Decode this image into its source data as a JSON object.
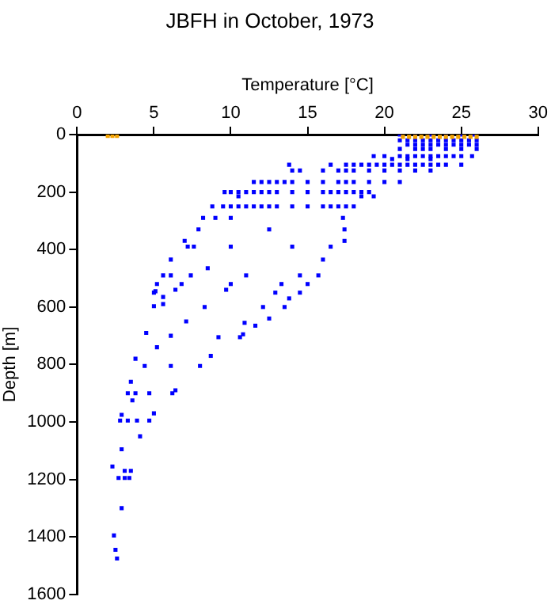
{
  "chart_data": {
    "type": "scatter",
    "title": "JBFH in October, 1973",
    "xlabel": "Temperature [°C]",
    "ylabel": "Depth [m]",
    "xlim": [
      0,
      30
    ],
    "xticks": [
      0,
      5,
      10,
      15,
      20,
      25,
      30
    ],
    "ylim": [
      1600,
      0
    ],
    "yticks": [
      0,
      200,
      400,
      600,
      800,
      1000,
      1200,
      1400,
      1600
    ],
    "grid": false,
    "legend": false,
    "marker": "square",
    "series": [
      {
        "color": "#f5a300",
        "x": [
          2.0,
          2.3,
          2.6,
          21.2,
          21.6,
          22,
          22.4,
          22.8,
          23.2,
          23.6,
          24,
          24.4,
          24.8,
          25.2,
          25.6,
          26
        ],
        "values": [
          5,
          5,
          5,
          8,
          8,
          8,
          8,
          8,
          8,
          8,
          8,
          8,
          8,
          8,
          8,
          8
        ]
      },
      {
        "color": "#0000ff",
        "x": [
          21,
          22,
          23,
          24,
          25,
          25.8,
          21,
          21.5,
          22,
          22.5,
          23,
          23.5,
          24,
          24.5,
          25,
          25.5,
          26,
          21.5,
          22,
          22.5,
          23,
          23.5,
          24,
          24.5,
          25,
          25.5,
          26,
          21,
          22,
          22.5,
          23,
          24,
          25,
          26,
          19.3,
          20,
          21,
          21.5,
          22,
          22.5,
          23,
          23.5,
          24,
          24.5,
          25,
          25.7,
          20.5,
          21.5,
          23,
          13.8,
          16.5,
          17.5,
          18,
          18.5,
          19,
          19.5,
          20,
          20.5,
          21,
          21.5,
          22,
          22.5,
          23,
          23.5,
          24,
          25,
          14,
          14.5,
          16,
          17,
          17.5,
          18,
          19,
          20,
          21,
          22,
          23,
          11.5,
          12,
          12.5,
          13,
          13.5,
          14,
          15,
          16,
          17,
          17.5,
          18,
          19,
          20,
          21,
          9.6,
          10,
          10.5,
          11,
          11.5,
          12,
          12.5,
          13,
          14,
          15,
          16,
          16.5,
          17,
          17.5,
          18,
          18.5,
          19,
          10.5,
          18.5,
          19.3,
          8.8,
          9.5,
          10,
          10.5,
          11,
          11.5,
          12,
          12.5,
          13,
          14,
          15,
          16,
          16.5,
          17,
          17.5,
          18,
          8.2,
          9,
          10,
          17.3,
          7.9,
          12.5,
          17.4,
          7,
          17.4,
          7.2,
          7.6,
          10,
          14,
          16.5,
          6.1,
          16,
          8.5,
          5.6,
          6.1,
          7.4,
          11,
          14.5,
          15.7,
          5.2,
          6.8,
          10,
          13.3,
          15,
          5.0,
          5.1,
          6.4,
          9.7,
          12.9,
          14.5,
          13.8,
          5.0,
          5.6,
          8.3,
          12.1,
          13.5,
          5.6,
          7.1,
          4.5,
          6.1,
          9.2,
          10.6,
          10.9,
          11.6,
          12.5,
          10.8,
          5.2,
          3.8,
          4.4,
          6.1,
          8.0,
          8.7,
          3.5,
          3.3,
          3.8,
          4.7,
          3.6,
          6.2,
          6.4,
          2.9,
          2.8,
          3.3,
          3.9,
          4.7,
          5.0,
          4.1,
          2.9,
          2.3,
          2.7,
          3.1,
          3.5,
          3.1,
          3.4,
          2.9,
          2.4,
          2.5,
          2.6
        ],
        "values": [
          0,
          0,
          0,
          0,
          0,
          0,
          20,
          20,
          20,
          20,
          20,
          20,
          20,
          20,
          20,
          20,
          20,
          35,
          35,
          35,
          35,
          35,
          35,
          35,
          35,
          35,
          35,
          50,
          50,
          50,
          50,
          50,
          50,
          50,
          75,
          75,
          75,
          75,
          75,
          75,
          75,
          75,
          75,
          75,
          75,
          75,
          85,
          85,
          85,
          105,
          105,
          105,
          105,
          105,
          105,
          105,
          105,
          105,
          105,
          105,
          105,
          105,
          105,
          105,
          105,
          105,
          125,
          125,
          125,
          125,
          125,
          125,
          125,
          125,
          125,
          125,
          125,
          165,
          165,
          165,
          165,
          165,
          165,
          165,
          165,
          165,
          165,
          165,
          165,
          165,
          165,
          200,
          200,
          200,
          200,
          200,
          200,
          200,
          200,
          200,
          200,
          200,
          200,
          200,
          200,
          200,
          200,
          200,
          215,
          215,
          215,
          250,
          250,
          250,
          250,
          250,
          250,
          250,
          250,
          250,
          250,
          250,
          250,
          250,
          250,
          250,
          250,
          290,
          290,
          290,
          290,
          330,
          330,
          330,
          370,
          370,
          390,
          390,
          390,
          390,
          390,
          435,
          435,
          465,
          490,
          490,
          490,
          490,
          490,
          490,
          520,
          520,
          520,
          520,
          520,
          550,
          545,
          540,
          540,
          550,
          550,
          570,
          597,
          590,
          600,
          600,
          600,
          565,
          650,
          690,
          700,
          705,
          705,
          655,
          665,
          640,
          695,
          740,
          780,
          805,
          805,
          805,
          770,
          860,
          900,
          900,
          900,
          925,
          900,
          890,
          975,
          995,
          995,
          995,
          995,
          970,
          1050,
          1095,
          1155,
          1195,
          1170,
          1170,
          1195,
          1195,
          1300,
          1395,
          1445,
          1475
        ]
      }
    ]
  }
}
